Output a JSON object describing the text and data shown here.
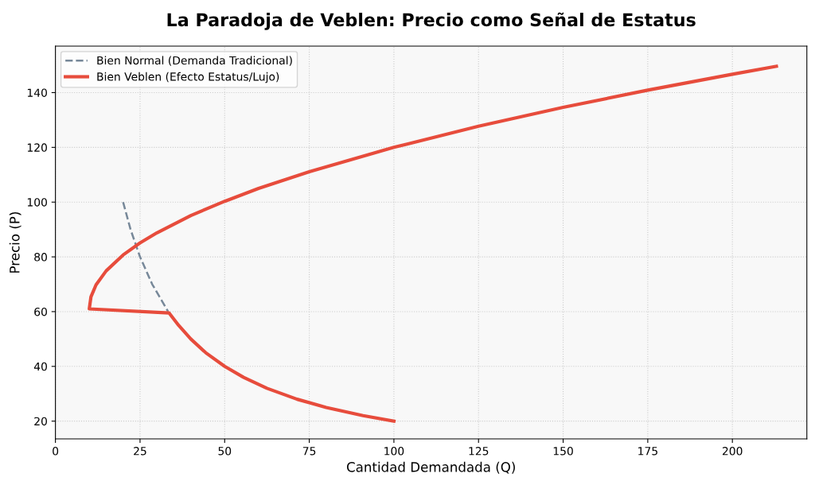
{
  "chart_data": {
    "type": "line",
    "title": "La Paradoja de Veblen: Precio como Señal de Estatus",
    "xlabel": "Cantidad Demandada (Q)",
    "ylabel": "Precio (P)",
    "series": [
      {
        "name": "Bien Normal (Demanda Tradicional)",
        "color": "#778899",
        "line_style": "dashed",
        "x": [
          20,
          22.2,
          25,
          28.6,
          33.3
        ],
        "values": [
          100,
          90,
          80,
          70,
          60
        ]
      },
      {
        "name": "Bien Veblen (Efecto Estatus/Lujo)",
        "color": "#e74c3c",
        "line_style": "solid",
        "x": [
          100,
          90.9,
          80,
          71.4,
          62.5,
          55.6,
          50,
          44.4,
          40,
          36.4,
          33.6,
          10,
          10.5,
          12,
          15,
          20,
          25,
          30,
          40,
          50,
          60,
          75,
          100,
          125,
          150,
          175,
          200,
          213
        ],
        "values": [
          20,
          22,
          25,
          28,
          32,
          36,
          40,
          45,
          50,
          55,
          59.5,
          61,
          65.4,
          69.8,
          74.9,
          80.7,
          85.1,
          88.8,
          95.1,
          100.3,
          105,
          111.1,
          120,
          127.7,
          134.6,
          140.9,
          146.7,
          149.6
        ]
      }
    ],
    "xlim": [
      0,
      222
    ],
    "ylim": [
      13.5,
      157
    ],
    "xticks": [
      0,
      25,
      50,
      75,
      100,
      125,
      150,
      175,
      200
    ],
    "yticks": [
      20,
      40,
      60,
      80,
      100,
      120,
      140
    ],
    "grid": true,
    "legend": "top left",
    "marker": "none"
  }
}
